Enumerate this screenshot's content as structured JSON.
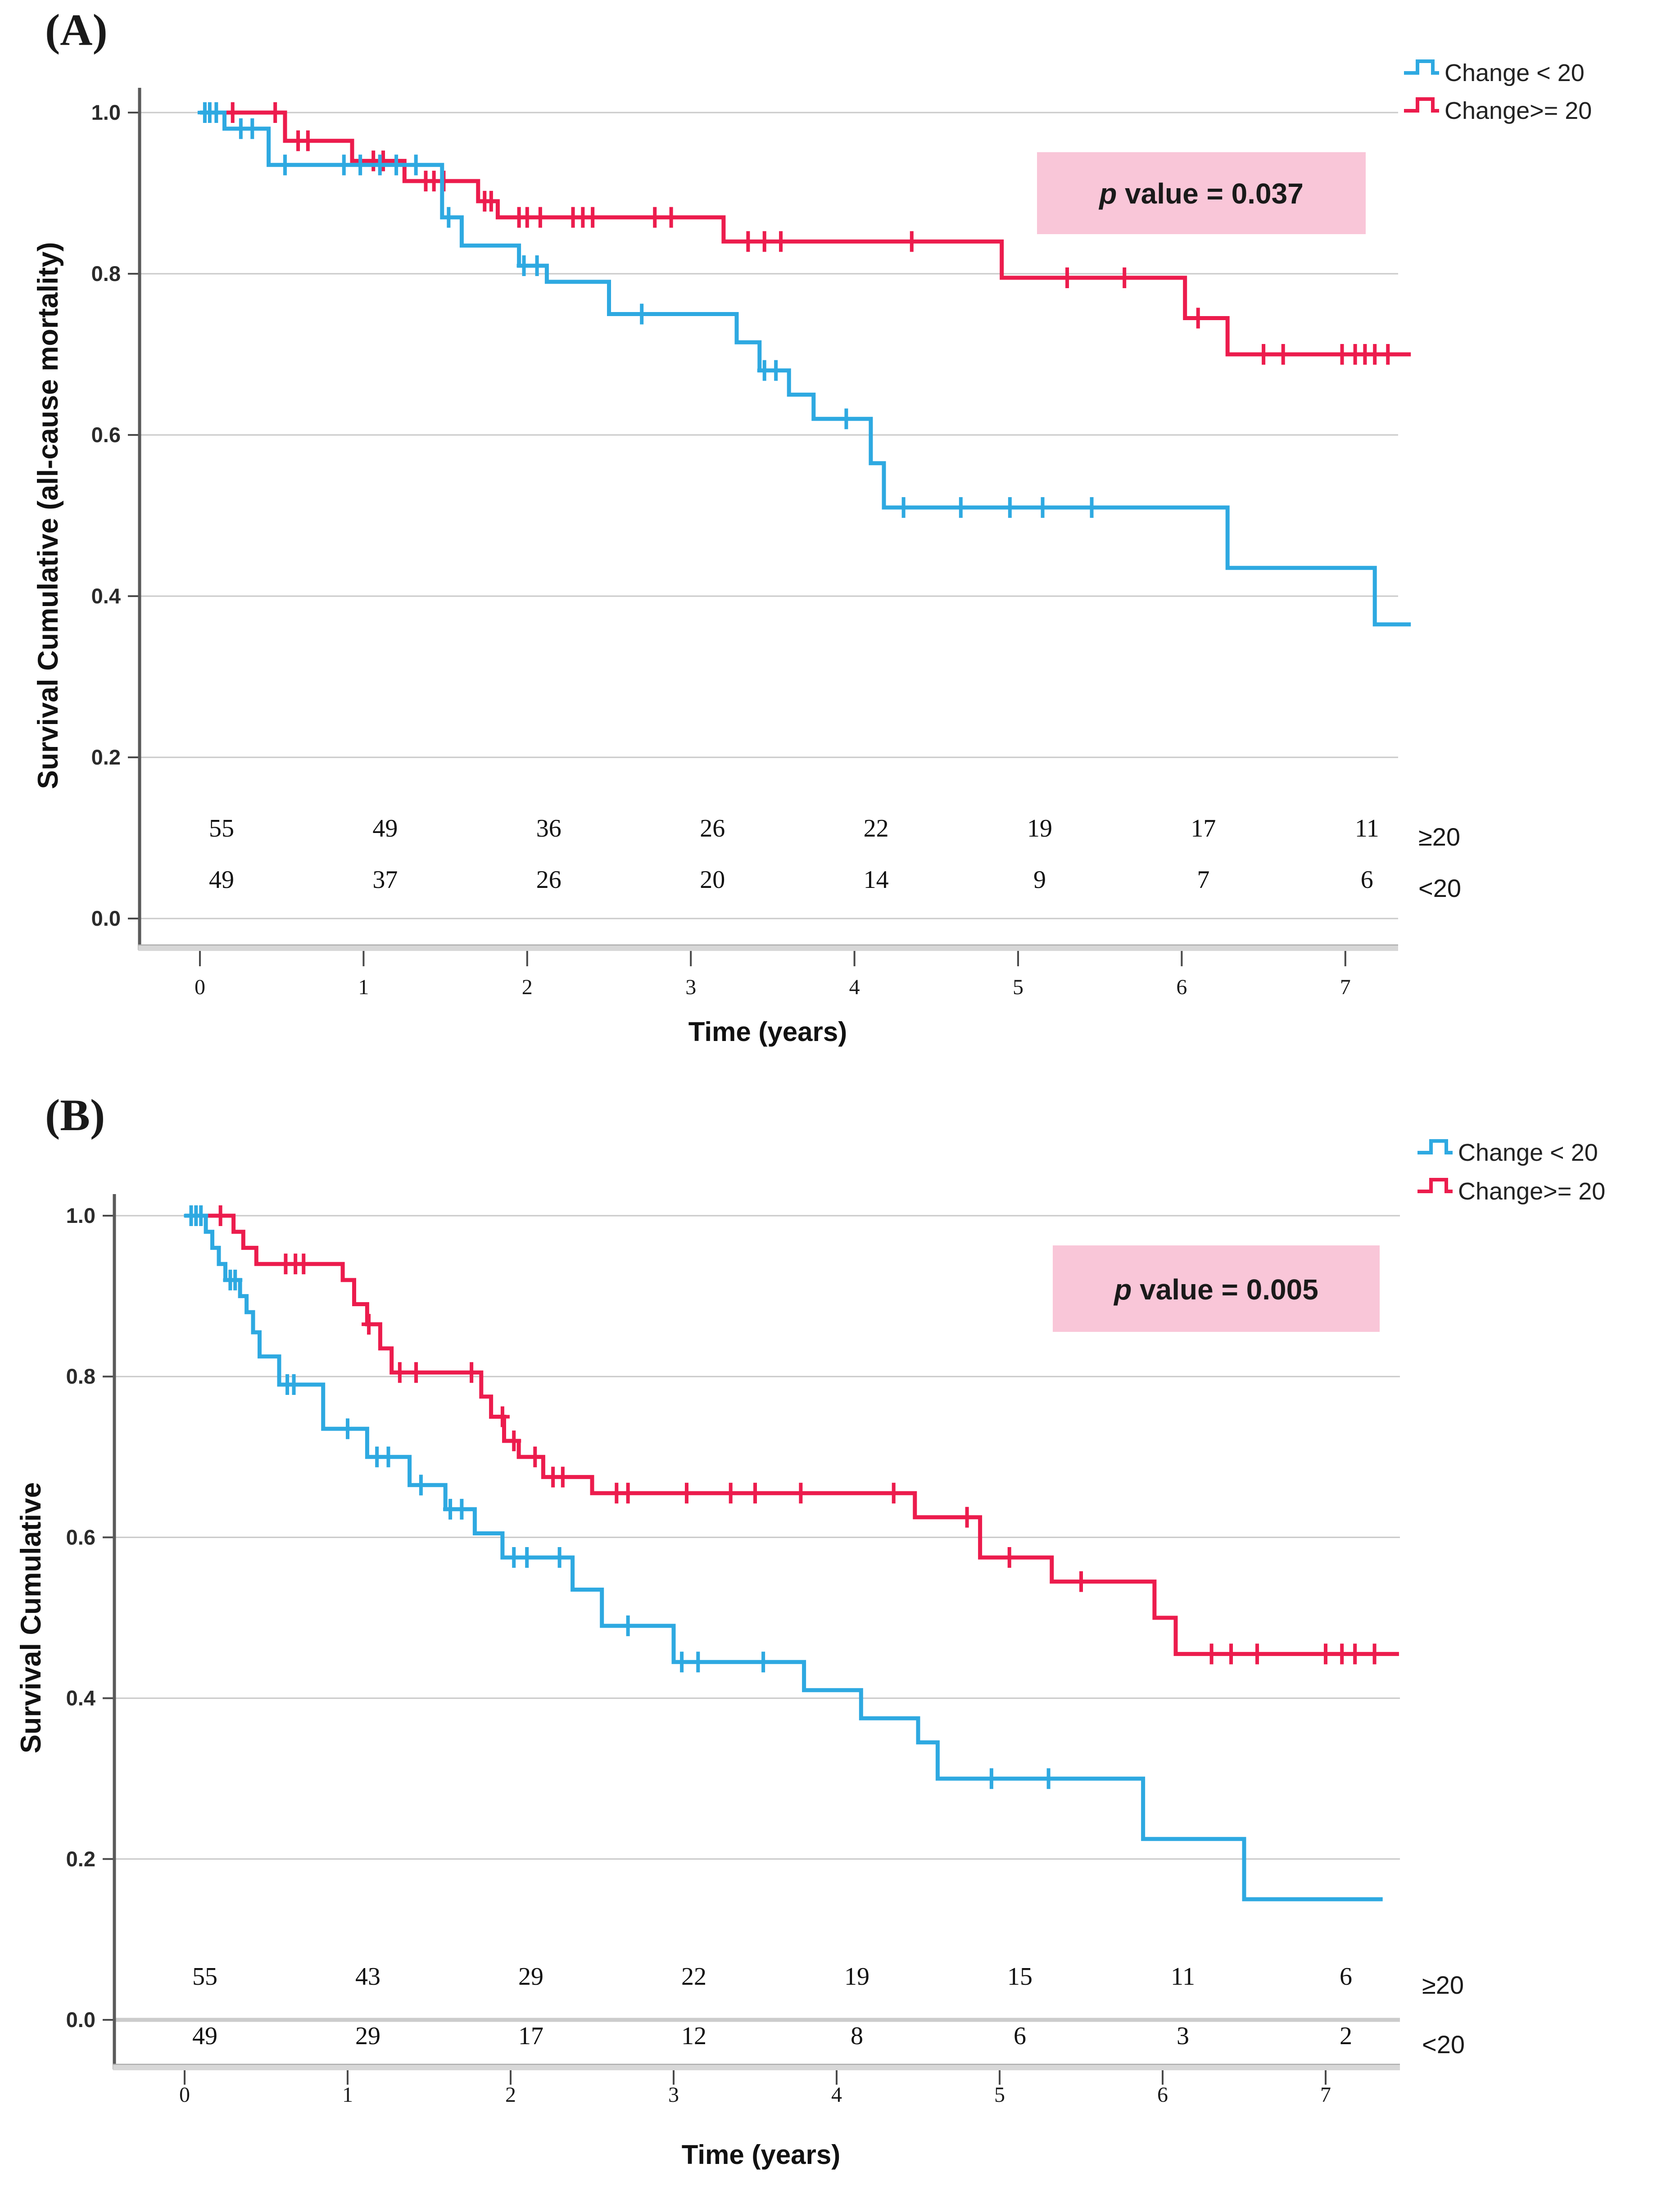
{
  "chart_data": [
    {
      "type": "line",
      "subtype": "kaplan-meier-step",
      "panel_label": "(A)",
      "p_italic": "p",
      "p_rest": " value = 0.037",
      "p_box_color": "#F9C6D8",
      "panel_label_color": "#E8121C",
      "legend": [
        {
          "label": "Change < 20",
          "color": "#2EA9E1"
        },
        {
          "label": "Change>= 20",
          "color": "#EC1C4D"
        }
      ],
      "y_axis": {
        "title": "Survival Cumulative (all-cause mortality)",
        "ticks": [
          "1.0",
          "0.8",
          "0.6",
          "0.4",
          "0.2",
          "0.0"
        ],
        "range": [
          0.0,
          1.0
        ],
        "grid": true
      },
      "x_axis": {
        "title": "Time (years)",
        "ticks": [
          "0",
          "1",
          "2",
          "3",
          "4",
          "5",
          "6",
          "7"
        ],
        "range": [
          0,
          7.4
        ]
      },
      "at_risk": {
        "rows": [
          {
            "label": "≥20",
            "color": "#F4505E",
            "values": [
              "55",
              "49",
              "36",
              "26",
              "22",
              "19",
              "17",
              "11"
            ]
          },
          {
            "label": "<20",
            "color": "#30B8EA",
            "values": [
              "49",
              "37",
              "26",
              "20",
              "14",
              "9",
              "7",
              "6"
            ]
          }
        ]
      },
      "series": [
        {
          "name": "Change>= 20",
          "color": "#EC1C4D",
          "steps": [
            [
              0,
              1.0
            ],
            [
              0.52,
              0.965
            ],
            [
              0.93,
              0.94
            ],
            [
              1.25,
              0.915
            ],
            [
              1.7,
              0.89
            ],
            [
              1.82,
              0.87
            ],
            [
              3.2,
              0.84
            ],
            [
              4.9,
              0.795
            ],
            [
              6.02,
              0.745
            ],
            [
              6.28,
              0.7
            ],
            [
              7.4,
              0.7
            ]
          ],
          "censors": [
            0.2,
            0.46,
            0.6,
            0.66,
            1.06,
            1.12,
            1.38,
            1.43,
            1.49,
            1.74,
            1.78,
            1.95,
            2.0,
            2.08,
            2.28,
            2.34,
            2.4,
            2.78,
            2.88,
            3.35,
            3.45,
            3.55,
            4.35,
            5.3,
            5.65,
            6.1,
            6.5,
            6.62,
            6.98,
            7.06,
            7.12,
            7.18,
            7.26
          ]
        },
        {
          "name": "Change < 20",
          "color": "#2EA9E1",
          "steps": [
            [
              0,
              1.0
            ],
            [
              0.15,
              0.98
            ],
            [
              0.42,
              0.935
            ],
            [
              1.48,
              0.87
            ],
            [
              1.6,
              0.835
            ],
            [
              1.95,
              0.81
            ],
            [
              2.12,
              0.79
            ],
            [
              2.5,
              0.75
            ],
            [
              3.28,
              0.715
            ],
            [
              3.42,
              0.68
            ],
            [
              3.6,
              0.65
            ],
            [
              3.75,
              0.62
            ],
            [
              4.1,
              0.565
            ],
            [
              4.18,
              0.51
            ],
            [
              6.28,
              0.435
            ],
            [
              7.18,
              0.365
            ],
            [
              7.4,
              0.365
            ]
          ],
          "censors": [
            0.03,
            0.06,
            0.1,
            0.25,
            0.32,
            0.52,
            0.88,
            0.98,
            1.1,
            1.2,
            1.32,
            1.52,
            1.98,
            2.06,
            2.7,
            3.45,
            3.52,
            3.95,
            4.3,
            4.65,
            4.95,
            5.15,
            5.45
          ]
        }
      ]
    },
    {
      "type": "line",
      "subtype": "kaplan-meier-step",
      "panel_label": "(B)",
      "p_italic": "p",
      "p_rest": " value = 0.005",
      "p_box_color": "#F9C6D8",
      "panel_label_color": "#E8121C",
      "legend": [
        {
          "label": "Change < 20",
          "color": "#2EA9E1"
        },
        {
          "label": "Change>= 20",
          "color": "#EC1C4D"
        }
      ],
      "y_axis": {
        "title": "Survival Cumulative",
        "ticks": [
          "1.0",
          "0.8",
          "0.6",
          "0.4",
          "0.2",
          "0.0"
        ],
        "range": [
          0.0,
          1.0
        ],
        "grid": true
      },
      "x_axis": {
        "title": "Time (years)",
        "ticks": [
          "0",
          "1",
          "2",
          "3",
          "4",
          "5",
          "6",
          "7"
        ],
        "range": [
          0,
          7.45
        ]
      },
      "at_risk": {
        "rows": [
          {
            "label": "≥20",
            "color": "#F4505E",
            "values": [
              "55",
              "43",
              "29",
              "22",
              "19",
              "15",
              "11",
              "6"
            ]
          },
          {
            "label": "<20",
            "color": "#30B8EA",
            "values": [
              "49",
              "29",
              "17",
              "12",
              "8",
              "6",
              "3",
              "2"
            ]
          }
        ]
      },
      "series": [
        {
          "name": "Change>= 20",
          "color": "#EC1C4D",
          "steps": [
            [
              0,
              1.0
            ],
            [
              0.3,
              0.98
            ],
            [
              0.36,
              0.96
            ],
            [
              0.44,
              0.94
            ],
            [
              0.97,
              0.92
            ],
            [
              1.04,
              0.89
            ],
            [
              1.12,
              0.865
            ],
            [
              1.2,
              0.835
            ],
            [
              1.27,
              0.805
            ],
            [
              1.82,
              0.775
            ],
            [
              1.88,
              0.75
            ],
            [
              1.96,
              0.72
            ],
            [
              2.05,
              0.7
            ],
            [
              2.2,
              0.675
            ],
            [
              2.5,
              0.655
            ],
            [
              4.48,
              0.625
            ],
            [
              4.88,
              0.575
            ],
            [
              5.32,
              0.545
            ],
            [
              5.95,
              0.5
            ],
            [
              6.08,
              0.455
            ],
            [
              7.45,
              0.455
            ]
          ],
          "censors": [
            0.22,
            0.62,
            0.68,
            0.73,
            1.13,
            1.32,
            1.42,
            1.76,
            1.95,
            2.02,
            2.15,
            2.26,
            2.32,
            2.65,
            2.72,
            3.08,
            3.35,
            3.5,
            3.78,
            4.35,
            4.8,
            5.06,
            5.5,
            6.3,
            6.42,
            6.58,
            7.0,
            7.1,
            7.18,
            7.3
          ]
        },
        {
          "name": "Change < 20",
          "color": "#2EA9E1",
          "steps": [
            [
              0,
              1.0
            ],
            [
              0.13,
              0.98
            ],
            [
              0.17,
              0.96
            ],
            [
              0.21,
              0.94
            ],
            [
              0.25,
              0.92
            ],
            [
              0.34,
              0.9
            ],
            [
              0.38,
              0.88
            ],
            [
              0.42,
              0.855
            ],
            [
              0.46,
              0.825
            ],
            [
              0.58,
              0.79
            ],
            [
              0.85,
              0.735
            ],
            [
              1.12,
              0.7
            ],
            [
              1.38,
              0.665
            ],
            [
              1.6,
              0.635
            ],
            [
              1.78,
              0.605
            ],
            [
              1.95,
              0.575
            ],
            [
              2.38,
              0.535
            ],
            [
              2.56,
              0.49
            ],
            [
              3.0,
              0.445
            ],
            [
              3.8,
              0.41
            ],
            [
              4.15,
              0.375
            ],
            [
              4.5,
              0.345
            ],
            [
              4.62,
              0.3
            ],
            [
              5.88,
              0.225
            ],
            [
              6.5,
              0.15
            ],
            [
              7.35,
              0.15
            ]
          ],
          "censors": [
            0.04,
            0.07,
            0.1,
            0.28,
            0.31,
            0.63,
            0.67,
            1.0,
            1.18,
            1.25,
            1.45,
            1.63,
            1.7,
            2.02,
            2.1,
            2.3,
            2.72,
            3.05,
            3.15,
            3.55,
            4.95,
            5.3
          ]
        }
      ]
    }
  ]
}
